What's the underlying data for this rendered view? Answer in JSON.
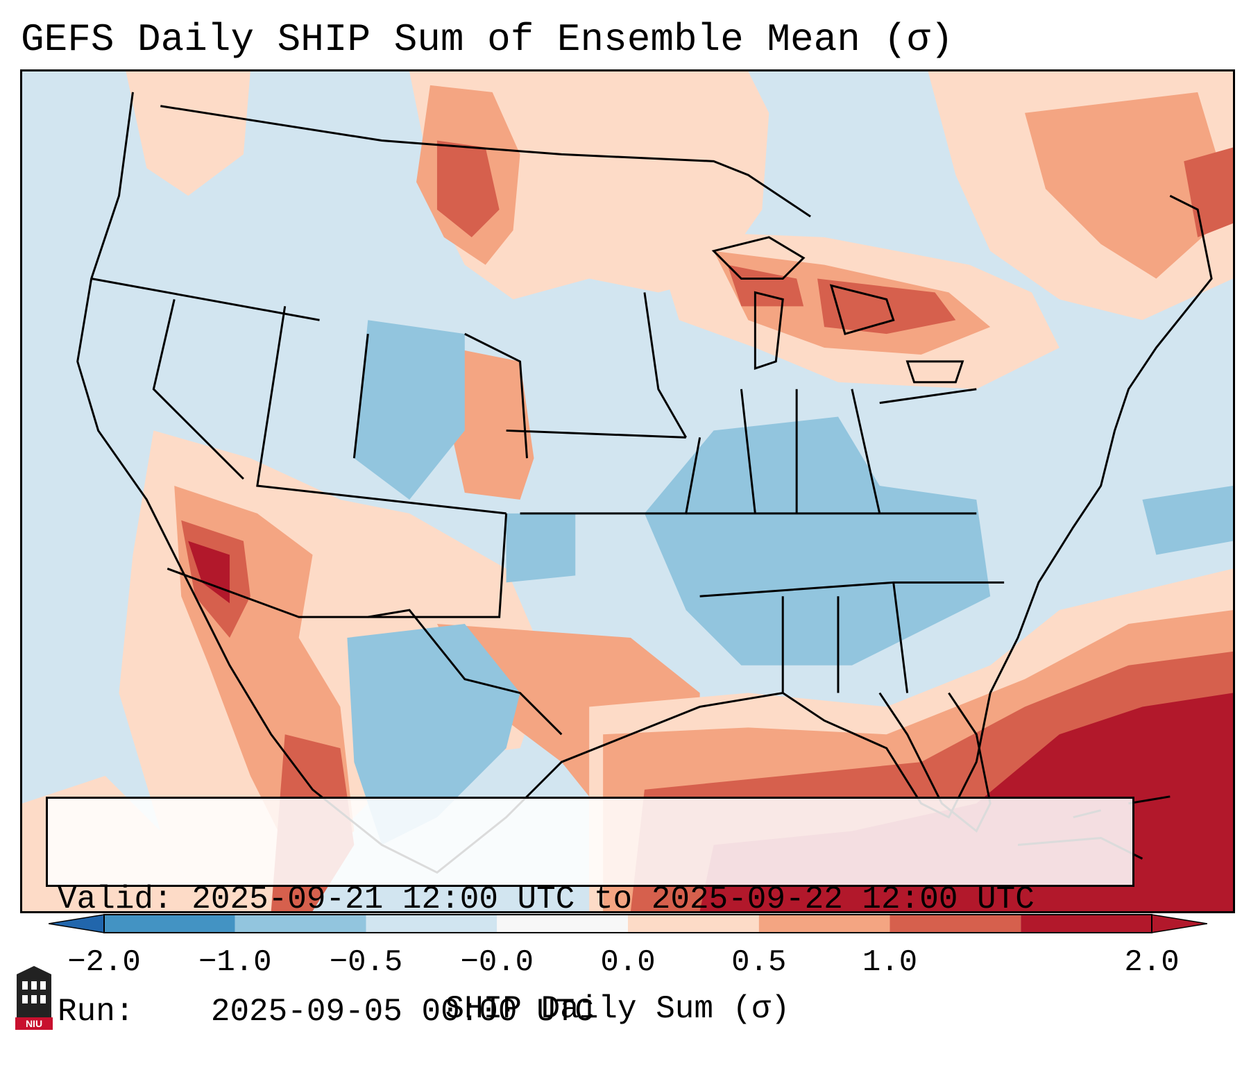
{
  "title": "GEFS Daily SHIP Sum of Ensemble Mean (σ)",
  "info": {
    "valid_label": "Valid:",
    "valid_value": "2025-09-21 12:00 UTC to 2025-09-22 12:00 UTC",
    "run_label": "Run:",
    "run_value": "2025-09-05 00:00 UTC"
  },
  "colorbar": {
    "label": "SHIP Daily Sum (σ)",
    "ticks": [
      "−2.0",
      "−1.0",
      "−0.5",
      "−0.0",
      "0.0",
      "0.5",
      "1.0",
      "2.0"
    ],
    "colors": [
      "#4393c3",
      "#92c5de",
      "#d1e5f0",
      "#f7f7f7",
      "#fddbc7",
      "#f4a582",
      "#d6604d",
      "#b2182b"
    ],
    "extend_low_color": "#2166ac",
    "extend_high_color": "#b2182b"
  },
  "logo": {
    "text": "NIU",
    "color": "#c8102e"
  }
}
